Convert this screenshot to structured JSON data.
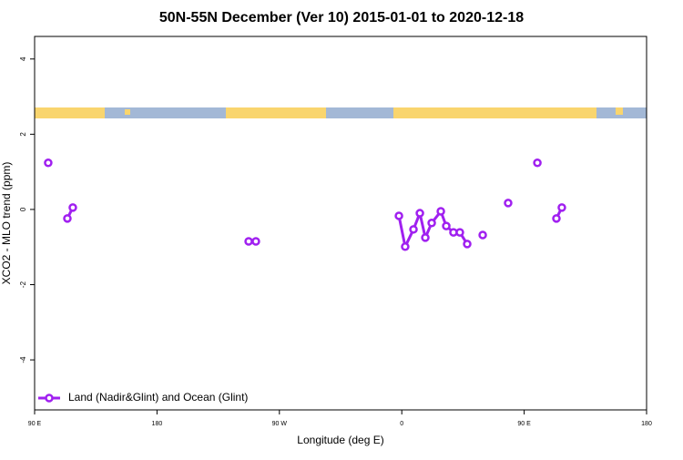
{
  "chart_data": {
    "type": "line",
    "title": "50N-55N December (Ver 10)   2015-01-01 to 2020-12-18",
    "x_label": "Longitude (deg E)",
    "y_label": "XCO2 - MLO trend (ppm)",
    "xlim": [
      90,
      540
    ],
    "xticks": [
      {
        "value": 90,
        "label": "90 E"
      },
      180,
      {
        "value": 270,
        "label": "90 W"
      },
      {
        "value": 360,
        "label": "0"
      },
      {
        "value": 450,
        "label": "90 E"
      },
      {
        "value": 540,
        "label": "180"
      }
    ],
    "ylim": [
      -5.33,
      4.6
    ],
    "yticks": [
      -4,
      -2,
      0,
      2,
      4
    ],
    "legend_position": "bottom-left",
    "series": [
      {
        "name": "Land (Nadir&Glint) and Ocean (Glint)",
        "color": "#a020f0",
        "x": [
          100.0,
          null,
          114.1,
          118.1,
          null,
          247.4,
          252.7,
          null,
          357.9,
          362.5,
          368.6,
          373.3,
          377.3,
          382.0,
          388.7,
          392.7,
          398.0,
          402.7,
          408.1,
          null,
          419.5,
          null,
          438.2,
          null,
          459.7,
          null,
          473.7,
          477.7
        ],
        "values": [
          1.24,
          null,
          -0.24,
          0.05,
          null,
          -0.85,
          -0.85,
          null,
          -0.17,
          -0.99,
          -0.53,
          -0.1,
          -0.75,
          -0.36,
          -0.05,
          -0.44,
          -0.61,
          -0.61,
          -0.92,
          null,
          -0.68,
          null,
          0.17,
          null,
          1.24,
          null,
          -0.24,
          0.05
        ]
      }
    ]
  }
}
